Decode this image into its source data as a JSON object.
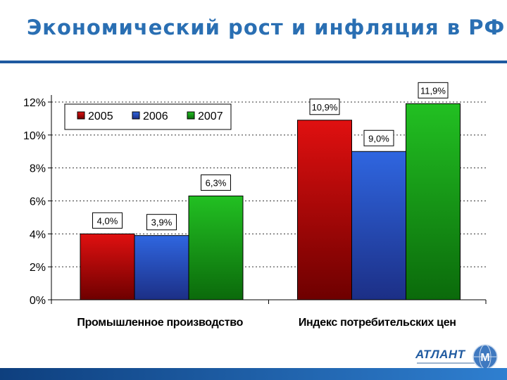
{
  "slide": {
    "title": "Экономический рост и инфляция в РФ"
  },
  "colors": {
    "accent": "#2a6fb3",
    "rule": "#1f5aa0",
    "footer": "#1a5cac"
  },
  "logo": {
    "name": "АТЛАНТ",
    "emblem_icon": "globe-emblem-icon"
  },
  "chart_data": {
    "type": "bar",
    "categories": [
      "Промышленное производство",
      "Индекс потребительских цен"
    ],
    "series": [
      {
        "name": "2005",
        "values": [
          4.0,
          10.9
        ],
        "labels": [
          "4,0%",
          "10,9%"
        ],
        "color": "#e01010"
      },
      {
        "name": "2006",
        "values": [
          3.9,
          9.0
        ],
        "labels": [
          "3,9%",
          "9,0%"
        ],
        "color": "#2f66e0"
      },
      {
        "name": "2007",
        "values": [
          6.3,
          11.9
        ],
        "labels": [
          "6,3%",
          "11,9%"
        ],
        "color": "#22c022"
      }
    ],
    "yticks": [
      "0%",
      "2%",
      "4%",
      "6%",
      "8%",
      "10%",
      "12%"
    ],
    "ylim": [
      0,
      12
    ],
    "xlabel": "",
    "ylabel": "",
    "grid": true,
    "legend": "top-left"
  }
}
